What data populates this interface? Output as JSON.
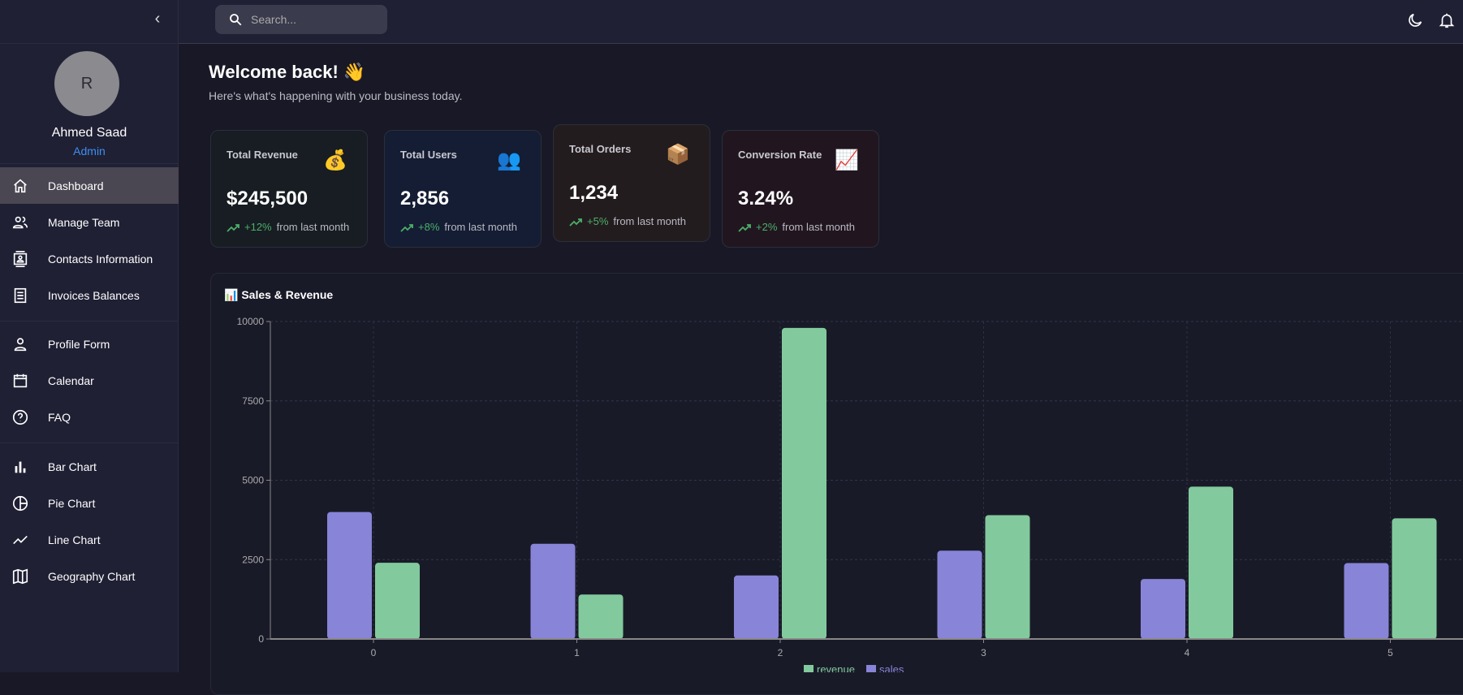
{
  "sidebar": {
    "collapse_icon": "chevron-left-icon",
    "avatar_initial": "R",
    "user_name": "Ahmed Saad",
    "user_role": "Admin",
    "items": [
      {
        "label": "Dashboard",
        "icon": "home-icon",
        "active": true
      },
      {
        "label": "Manage Team",
        "icon": "people-icon"
      },
      {
        "label": "Contacts Information",
        "icon": "contacts-icon"
      },
      {
        "label": "Invoices Balances",
        "icon": "receipt-icon"
      },
      {
        "label": "Profile Form",
        "icon": "person-icon"
      },
      {
        "label": "Calendar",
        "icon": "calendar-icon"
      },
      {
        "label": "FAQ",
        "icon": "help-icon"
      },
      {
        "label": "Bar Chart",
        "icon": "bar-chart-icon"
      },
      {
        "label": "Pie Chart",
        "icon": "pie-chart-icon"
      },
      {
        "label": "Line Chart",
        "icon": "line-chart-icon"
      },
      {
        "label": "Geography Chart",
        "icon": "map-icon"
      }
    ]
  },
  "topbar": {
    "search_placeholder": "Search...",
    "icons": [
      "dark-mode-icon",
      "notifications-icon"
    ]
  },
  "main": {
    "welcome": "Welcome back! 👋",
    "subtitle": "Here's what's happening with your business today.",
    "cards": [
      {
        "title": "Total Revenue",
        "icon": "💰",
        "value": "$245,500",
        "change": "+12%",
        "note": "from last month",
        "bg": "#171d22"
      },
      {
        "title": "Total Users",
        "icon": "👥",
        "value": "2,856",
        "change": "+8%",
        "note": "from last month",
        "bg": "#141d33"
      },
      {
        "title": "Total Orders",
        "icon": "📦",
        "value": "1,234",
        "change": "+5%",
        "note": "from last month",
        "bg": "#231c1e"
      },
      {
        "title": "Conversion Rate",
        "icon": "📈",
        "value": "3.24%",
        "change": "+2%",
        "note": "from last month",
        "bg": "#21161f"
      }
    ],
    "chart_title": "📊 Sales & Revenue"
  },
  "chart_data": {
    "type": "bar",
    "categories": [
      "0",
      "1",
      "2",
      "3",
      "4",
      "5"
    ],
    "series": [
      {
        "name": "sales",
        "color": "#8884d8",
        "values": [
          4000,
          3000,
          2000,
          2780,
          1890,
          2390
        ]
      },
      {
        "name": "revenue",
        "color": "#82ca9d",
        "values": [
          2400,
          1400,
          9800,
          3900,
          4800,
          3800
        ]
      }
    ],
    "yticks": [
      "0",
      "2500",
      "5000",
      "7500",
      "10000"
    ],
    "ylim": [
      0,
      10000
    ],
    "grid": true,
    "legend": [
      "revenue",
      "sales"
    ],
    "legend_position": "bottom"
  }
}
